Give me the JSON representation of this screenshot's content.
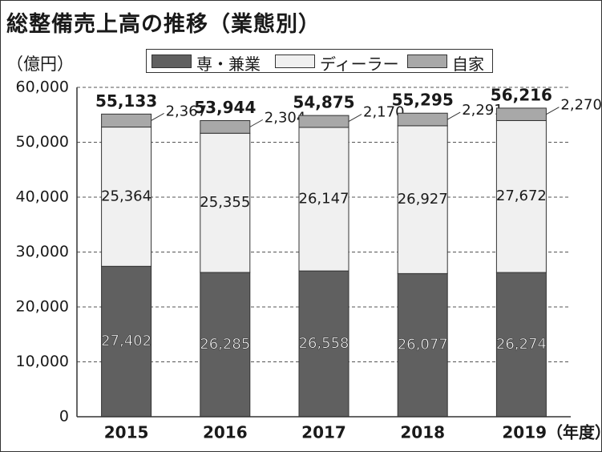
{
  "title": "総整備売上高の推移（業態別）",
  "unit_label": "（億円）",
  "colors": {
    "senzoku_kengyo": "#606060",
    "dealer": "#f0f0f0",
    "jika": "#a8a8a8"
  },
  "legend": [
    {
      "key": "senzoku_kengyo",
      "label": "専・兼業"
    },
    {
      "key": "dealer",
      "label": "ディーラー"
    },
    {
      "key": "jika",
      "label": "自家"
    }
  ],
  "chart_data": {
    "type": "bar",
    "stacked": true,
    "categories": [
      "2015",
      "2016",
      "2017",
      "2018",
      "2019"
    ],
    "category_labels": [
      "2015",
      "2016",
      "2017",
      "2018",
      "2019（年度）"
    ],
    "series": [
      {
        "name": "専・兼業",
        "values": [
          27402,
          26285,
          26558,
          26077,
          26274
        ],
        "labels": [
          "27,402",
          "26,285",
          "26,558",
          "26,077",
          "26,274"
        ]
      },
      {
        "name": "ディーラー",
        "values": [
          25364,
          25355,
          26147,
          26927,
          27672
        ],
        "labels": [
          "25,364",
          "25,355",
          "26,147",
          "26,927",
          "27,672"
        ]
      },
      {
        "name": "自家",
        "values": [
          2367,
          2304,
          2170,
          2291,
          2270
        ],
        "labels": [
          "2,367",
          "2,304",
          "2,170",
          "2,291",
          "2,270"
        ]
      }
    ],
    "totals": [
      55133,
      53944,
      54875,
      55295,
      56216
    ],
    "total_labels": [
      "55,133",
      "53,944",
      "54,875",
      "55,295",
      "56,216"
    ],
    "ylim": [
      0,
      60000
    ],
    "yticks": [
      0,
      10000,
      20000,
      30000,
      40000,
      50000,
      60000
    ],
    "ytick_labels": [
      "0",
      "10,000",
      "20,000",
      "30,000",
      "40,000",
      "50,000",
      "60,000"
    ],
    "grid": true,
    "legend_position": "top"
  }
}
